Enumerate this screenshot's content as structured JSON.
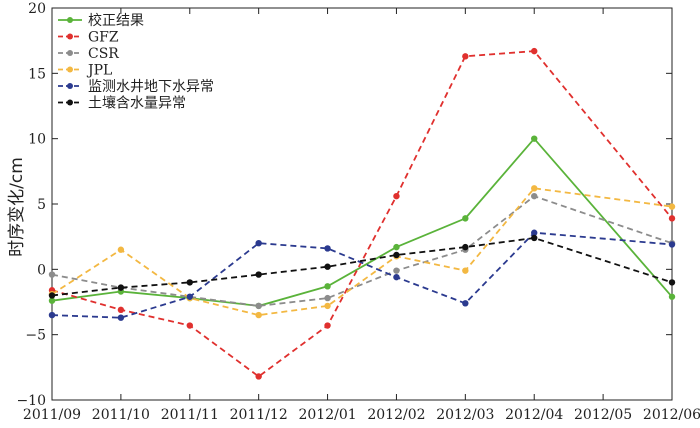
{
  "chart_data": {
    "type": "line",
    "xlabel": "",
    "ylabel": "时序变化/cm",
    "ylim": [
      -10,
      20
    ],
    "y_ticks": [
      -10,
      -5,
      0,
      5,
      10,
      15,
      20
    ],
    "categories": [
      "2011/09",
      "2011/10",
      "2011/11",
      "2011/12",
      "2012/01",
      "2012/02",
      "2012/03",
      "2012/04",
      "2012/05",
      "2012/06"
    ],
    "grid": false,
    "legend_position": "top-left",
    "series": [
      {
        "name": "校正结果",
        "color": "#5ab33a",
        "dash": "solid",
        "values": [
          -2.4,
          -1.7,
          -2.2,
          -2.8,
          -1.3,
          1.7,
          3.9,
          10.0,
          null,
          -2.1
        ]
      },
      {
        "name": "GFZ",
        "color": "#e0302e",
        "dash": "dashed",
        "values": [
          -1.6,
          -3.1,
          -4.3,
          -8.2,
          -4.3,
          5.6,
          16.3,
          16.7,
          null,
          3.9
        ]
      },
      {
        "name": "CSR",
        "color": "#8c8c8c",
        "dash": "dashed",
        "values": [
          -0.4,
          -1.4,
          -2.1,
          -2.8,
          -2.2,
          -0.1,
          1.5,
          5.6,
          null,
          2.0
        ]
      },
      {
        "name": "JPL",
        "color": "#f3b842",
        "dash": "dashed",
        "values": [
          -1.9,
          1.5,
          -2.2,
          -3.5,
          -2.8,
          1.0,
          -0.1,
          6.2,
          null,
          4.8
        ]
      },
      {
        "name": "监测水井地下水异常",
        "color": "#2b3a8f",
        "dash": "dashed",
        "values": [
          -3.5,
          -3.7,
          -2.1,
          2.0,
          1.6,
          -0.6,
          -2.6,
          2.8,
          null,
          1.9
        ]
      },
      {
        "name": "土壤含水量异常",
        "color": "#111111",
        "dash": "dashed",
        "values": [
          -2.0,
          -1.4,
          -1.0,
          -0.4,
          0.2,
          1.1,
          1.7,
          2.4,
          null,
          -1.0
        ]
      }
    ]
  }
}
